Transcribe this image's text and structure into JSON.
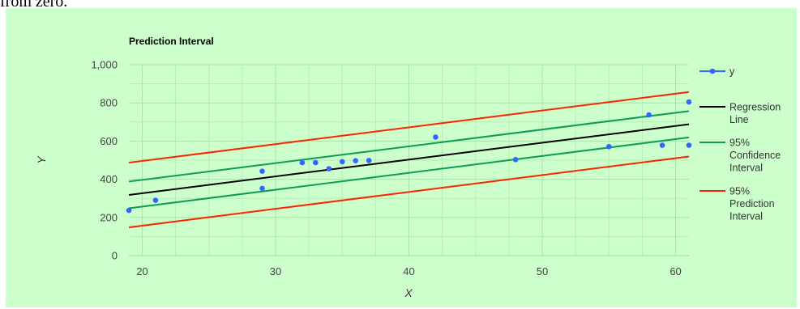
{
  "top_snippet": "from zero.",
  "chart_data": {
    "type": "scatter",
    "title": "Prediction Interval",
    "xlabel": "X",
    "ylabel": "Y",
    "xlim": [
      19,
      61
    ],
    "ylim": [
      0,
      1000
    ],
    "x_ticks": [
      20,
      30,
      40,
      50,
      60
    ],
    "y_ticks": [
      0,
      200,
      400,
      600,
      800,
      1000
    ],
    "y_tick_labels": [
      "0",
      "200",
      "400",
      "600",
      "800",
      "1,000"
    ],
    "grid": true,
    "legend_position": "right",
    "legend": [
      {
        "label_lines": [
          "y"
        ],
        "color": "#3366ff",
        "marker": true
      },
      {
        "label_lines": [
          "Regression",
          "Line"
        ],
        "color": "#000000",
        "marker": false
      },
      {
        "label_lines": [
          "95%",
          "Confidence",
          "Interval"
        ],
        "color": "#0a9d55",
        "marker": false
      },
      {
        "label_lines": [
          "95%",
          "Prediction",
          "Interval"
        ],
        "color": "#ff2200",
        "marker": false
      }
    ],
    "points": [
      {
        "x": 19,
        "y": 237
      },
      {
        "x": 21,
        "y": 290
      },
      {
        "x": 29,
        "y": 442
      },
      {
        "x": 29,
        "y": 352
      },
      {
        "x": 32,
        "y": 487
      },
      {
        "x": 33,
        "y": 487
      },
      {
        "x": 34,
        "y": 455
      },
      {
        "x": 35,
        "y": 492
      },
      {
        "x": 36,
        "y": 497
      },
      {
        "x": 37,
        "y": 498
      },
      {
        "x": 42,
        "y": 621
      },
      {
        "x": 48,
        "y": 503
      },
      {
        "x": 55,
        "y": 571
      },
      {
        "x": 58,
        "y": 737
      },
      {
        "x": 59,
        "y": 578
      },
      {
        "x": 61,
        "y": 805
      },
      {
        "x": 61,
        "y": 578
      }
    ],
    "lines": [
      {
        "name": "Regression Line",
        "color": "#000000",
        "from": [
          19,
          318
        ],
        "to": [
          61,
          688
        ]
      },
      {
        "name": "95% Confidence Interval upper",
        "color": "#0a9d55",
        "from": [
          19,
          388
        ],
        "to": [
          61,
          757
        ]
      },
      {
        "name": "95% Confidence Interval lower",
        "color": "#0a9d55",
        "from": [
          19,
          248
        ],
        "to": [
          61,
          619
        ]
      },
      {
        "name": "95% Prediction Interval upper",
        "color": "#ff2200",
        "from": [
          19,
          487
        ],
        "to": [
          61,
          857
        ]
      },
      {
        "name": "95% Prediction Interval lower",
        "color": "#ff2200",
        "from": [
          19,
          148
        ],
        "to": [
          61,
          519
        ]
      }
    ]
  }
}
